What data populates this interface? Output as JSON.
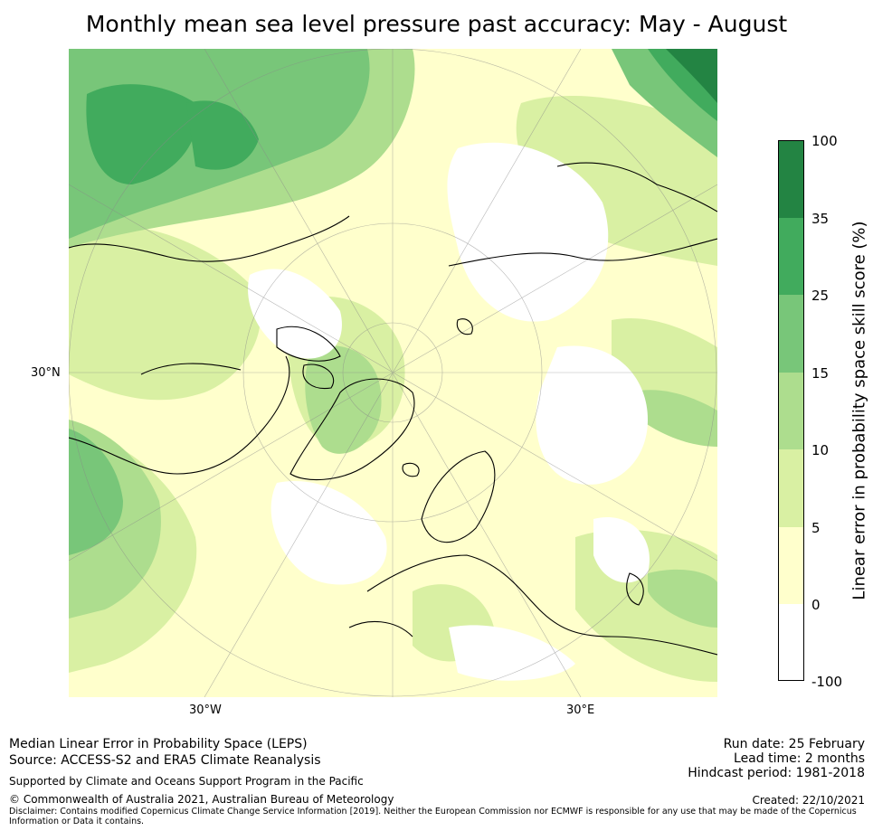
{
  "title": "Monthly mean sea level pressure past accuracy: May - August",
  "map": {
    "labels": {
      "lat_left": "30°N",
      "lon_bottom_left": "30°W",
      "lon_bottom_right": "30°E"
    },
    "icon": "polar-stereographic-map"
  },
  "colorbar": {
    "title": "Linear error in probability space skill score (%)",
    "tick_labels": [
      "100",
      "35",
      "25",
      "15",
      "10",
      "5",
      "0",
      "-100"
    ],
    "bins": [
      {
        "from": 35,
        "to": 100,
        "color": "#238443"
      },
      {
        "from": 25,
        "to": 35,
        "color": "#41ab5d"
      },
      {
        "from": 15,
        "to": 25,
        "color": "#78c679"
      },
      {
        "from": 10,
        "to": 15,
        "color": "#addd8e"
      },
      {
        "from": 5,
        "to": 10,
        "color": "#d9f0a3"
      },
      {
        "from": 0,
        "to": 5,
        "color": "#ffffcc"
      },
      {
        "from": -100,
        "to": 0,
        "color": "#ffffff"
      }
    ]
  },
  "footer": {
    "left": {
      "line1": "Median Linear Error in Probability Space (LEPS)",
      "line2": "Source: ACCESS-S2 and ERA5 Climate Reanalysis",
      "support": "Supported by Climate and Oceans Support Program in the Pacific",
      "copyright": "© Commonwealth of Australia 2021, Australian Bureau of Meteorology",
      "disclaimer1": "Disclaimer: Contains modified Copernicus Climate Change Service Information [2019]. Neither the European Commission nor ECMWF is responsible for any use that may be made of the Copernicus",
      "disclaimer2": "Information or Data it contains."
    },
    "right": {
      "run_date": "Run date: 25 February",
      "lead_time": "Lead time: 2 months",
      "hindcast": "Hindcast period: 1981-2018",
      "created": "Created: 22/10/2021"
    }
  }
}
